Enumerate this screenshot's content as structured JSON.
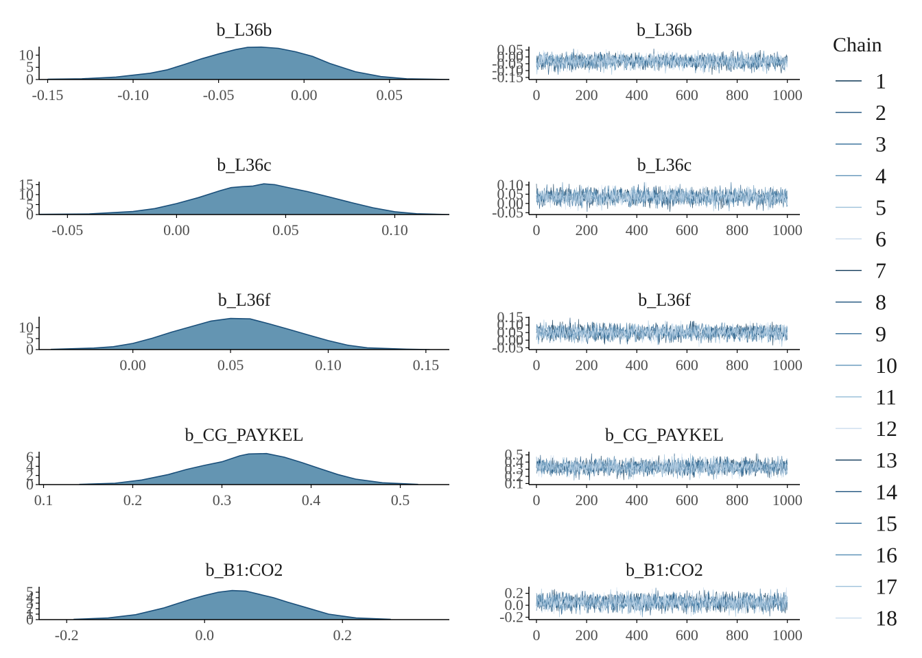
{
  "colors": {
    "density_fill": "#6495b2",
    "density_line": "#1a4f7a",
    "axis": "#000000",
    "tick_text": "#4d4d4d",
    "title_text": "#1a1a1a",
    "chain_palette": [
      "#0b3554",
      "#1a4f7a",
      "#2e6a96",
      "#5f93b8",
      "#9cc0d9",
      "#c9dced"
    ]
  },
  "legend": {
    "title": "Chain",
    "items": [
      "1",
      "2",
      "3",
      "4",
      "5",
      "6",
      "7",
      "8",
      "9",
      "10",
      "11",
      "12",
      "13",
      "14",
      "15",
      "16",
      "17",
      "18"
    ]
  },
  "chart_data": [
    {
      "type": "area",
      "title": "b_L36b",
      "xlabel": "",
      "ylabel": "",
      "xlim": [
        -0.155,
        0.085
      ],
      "ylim": [
        0,
        13.5
      ],
      "x_ticks": [
        -0.15,
        -0.1,
        -0.05,
        0.0,
        0.05
      ],
      "x_tick_labels": [
        "-0.15",
        "-0.10",
        "-0.05",
        "0.00",
        "0.05"
      ],
      "y_ticks": [
        0,
        5,
        10
      ],
      "y_tick_labels": [
        "0",
        "5",
        "10"
      ],
      "x": [
        -0.15,
        -0.13,
        -0.11,
        -0.09,
        -0.08,
        -0.07,
        -0.06,
        -0.05,
        -0.04,
        -0.033,
        -0.025,
        -0.015,
        -0.005,
        0.005,
        0.015,
        0.03,
        0.045,
        0.06,
        0.075,
        0.085
      ],
      "y": [
        0.1,
        0.3,
        1.0,
        2.6,
        4.0,
        6.2,
        8.5,
        10.5,
        12.3,
        13.2,
        13.3,
        12.8,
        11.4,
        9.5,
        6.6,
        3.2,
        1.2,
        0.3,
        0.1,
        0.0
      ]
    },
    {
      "type": "line",
      "title": "b_L36b",
      "xlabel": "",
      "ylabel": "",
      "xlim": [
        -30,
        1050
      ],
      "ylim": [
        -0.165,
        0.075
      ],
      "x_ticks": [
        0,
        200,
        400,
        600,
        800,
        1000
      ],
      "x_tick_labels": [
        "0",
        "200",
        "400",
        "600",
        "800",
        "1000"
      ],
      "y_ticks": [
        0.05,
        0.0,
        -0.05,
        -0.1,
        -0.15
      ],
      "y_tick_labels": [
        "0.05",
        "0.00",
        "-0.05",
        "-0.10",
        "-0.15"
      ],
      "n_iter": 1000,
      "center": -0.033,
      "spread": 0.03,
      "range": [
        -0.13,
        0.06
      ]
    },
    {
      "type": "area",
      "title": "b_L36c",
      "xlabel": "",
      "ylabel": "",
      "xlim": [
        -0.063,
        0.125
      ],
      "ylim": [
        0,
        16.5
      ],
      "x_ticks": [
        -0.05,
        0.0,
        0.05,
        0.1
      ],
      "x_tick_labels": [
        "-0.05",
        "0.00",
        "0.05",
        "0.10"
      ],
      "y_ticks": [
        0,
        5,
        10,
        15
      ],
      "y_tick_labels": [
        "0",
        "5",
        "10",
        "15"
      ],
      "x": [
        -0.063,
        -0.04,
        -0.02,
        -0.01,
        0.0,
        0.01,
        0.02,
        0.025,
        0.03,
        0.035,
        0.04,
        0.045,
        0.05,
        0.06,
        0.07,
        0.08,
        0.09,
        0.1,
        0.11,
        0.125
      ],
      "y": [
        0.1,
        0.3,
        1.5,
        3.0,
        5.5,
        8.5,
        12.0,
        13.5,
        14.0,
        14.3,
        15.4,
        15.0,
        13.8,
        11.5,
        8.8,
        6.0,
        3.4,
        1.4,
        0.4,
        0.0
      ]
    },
    {
      "type": "line",
      "title": "b_L36c",
      "xlabel": "",
      "ylabel": "",
      "xlim": [
        -30,
        1050
      ],
      "ylim": [
        -0.06,
        0.118
      ],
      "x_ticks": [
        0,
        200,
        400,
        600,
        800,
        1000
      ],
      "x_tick_labels": [
        "0",
        "200",
        "400",
        "600",
        "800",
        "1000"
      ],
      "y_ticks": [
        0.1,
        0.05,
        0.0,
        -0.05
      ],
      "y_tick_labels": [
        "0.10",
        "0.05",
        "0.00",
        "-0.05"
      ],
      "n_iter": 1000,
      "center": 0.035,
      "spread": 0.025,
      "range": [
        -0.045,
        0.115
      ]
    },
    {
      "type": "area",
      "title": "b_L36f",
      "xlabel": "",
      "ylabel": "",
      "xlim": [
        -0.048,
        0.162
      ],
      "ylim": [
        0,
        15
      ],
      "x_ticks": [
        0.0,
        0.05,
        0.1,
        0.15
      ],
      "x_tick_labels": [
        "0.00",
        "0.05",
        "0.10",
        "0.15"
      ],
      "y_ticks": [
        0,
        5,
        10
      ],
      "y_tick_labels": [
        "0",
        "5",
        "10"
      ],
      "x": [
        -0.042,
        -0.02,
        -0.01,
        0.0,
        0.01,
        0.02,
        0.03,
        0.04,
        0.05,
        0.06,
        0.07,
        0.08,
        0.09,
        0.1,
        0.11,
        0.12,
        0.14,
        0.152
      ],
      "y": [
        0.1,
        0.7,
        1.3,
        2.8,
        5.2,
        8.0,
        10.5,
        13.0,
        14.2,
        14.0,
        11.7,
        9.2,
        6.6,
        4.1,
        2.0,
        0.8,
        0.2,
        0.0
      ]
    },
    {
      "type": "line",
      "title": "b_L36f",
      "xlabel": "",
      "ylabel": "",
      "xlim": [
        -30,
        1050
      ],
      "ylim": [
        -0.062,
        0.155
      ],
      "x_ticks": [
        0,
        200,
        400,
        600,
        800,
        1000
      ],
      "x_tick_labels": [
        "0",
        "200",
        "400",
        "600",
        "800",
        "1000"
      ],
      "y_ticks": [
        0.15,
        0.1,
        0.05,
        0.0,
        -0.05
      ],
      "y_tick_labels": [
        "0.15",
        "0.10",
        "0.05",
        "0.00",
        "-0.05"
      ],
      "n_iter": 1000,
      "center": 0.05,
      "spread": 0.028,
      "range": [
        -0.045,
        0.148
      ]
    },
    {
      "type": "area",
      "title": "b_CG_PAYKEL",
      "xlabel": "",
      "ylabel": "",
      "xlim": [
        0.095,
        0.555
      ],
      "ylim": [
        0,
        7.2
      ],
      "x_ticks": [
        0.1,
        0.2,
        0.3,
        0.4,
        0.5
      ],
      "x_tick_labels": [
        "0.1",
        "0.2",
        "0.3",
        "0.4",
        "0.5"
      ],
      "y_ticks": [
        0,
        2,
        4,
        6
      ],
      "y_tick_labels": [
        "0",
        "2",
        "4",
        "6"
      ],
      "x": [
        0.14,
        0.18,
        0.21,
        0.24,
        0.26,
        0.28,
        0.3,
        0.32,
        0.33,
        0.35,
        0.37,
        0.39,
        0.41,
        0.43,
        0.45,
        0.48,
        0.52
      ],
      "y": [
        0.05,
        0.3,
        1.0,
        2.2,
        3.3,
        4.2,
        5.0,
        6.3,
        6.7,
        6.8,
        6.0,
        4.8,
        3.5,
        2.2,
        1.2,
        0.4,
        0.05
      ]
    },
    {
      "type": "line",
      "title": "b_CG_PAYKEL",
      "xlabel": "",
      "ylabel": "",
      "xlim": [
        -30,
        1050
      ],
      "ylim": [
        0.085,
        0.545
      ],
      "x_ticks": [
        0,
        200,
        400,
        600,
        800,
        1000
      ],
      "x_tick_labels": [
        "0",
        "200",
        "400",
        "600",
        "800",
        "1000"
      ],
      "y_ticks": [
        0.5,
        0.4,
        0.3,
        0.2,
        0.1
      ],
      "y_tick_labels": [
        "0.5",
        "0.4",
        "0.3",
        "0.2",
        "0.1"
      ],
      "n_iter": 1000,
      "center": 0.33,
      "spread": 0.06,
      "range": [
        0.13,
        0.52
      ]
    },
    {
      "type": "area",
      "title": "b_B1:CO2",
      "xlabel": "",
      "ylabel": "",
      "xlim": [
        -0.24,
        0.355
      ],
      "ylim": [
        0,
        6
      ],
      "x_ticks": [
        -0.2,
        0.0,
        0.2
      ],
      "x_tick_labels": [
        "-0.2",
        "0.0",
        "0.2"
      ],
      "y_ticks": [
        0,
        1,
        2,
        3,
        4,
        5
      ],
      "y_tick_labels": [
        "0",
        "1",
        "2",
        "3",
        "4",
        "5"
      ],
      "x": [
        -0.19,
        -0.14,
        -0.1,
        -0.06,
        -0.04,
        -0.02,
        0.0,
        0.02,
        0.04,
        0.06,
        0.08,
        0.1,
        0.12,
        0.15,
        0.18,
        0.22,
        0.27
      ],
      "y": [
        0.05,
        0.3,
        0.9,
        2.1,
        2.9,
        3.7,
        4.4,
        5.0,
        5.3,
        5.2,
        4.6,
        4.0,
        3.2,
        2.1,
        1.0,
        0.3,
        0.05
      ]
    },
    {
      "type": "line",
      "title": "b_B1:CO2",
      "xlabel": "",
      "ylabel": "",
      "xlim": [
        -30,
        1050
      ],
      "ylim": [
        -0.24,
        0.31
      ],
      "x_ticks": [
        0,
        200,
        400,
        600,
        800,
        1000
      ],
      "x_tick_labels": [
        "0",
        "200",
        "400",
        "600",
        "800",
        "1000"
      ],
      "y_ticks": [
        0.2,
        0.0,
        -0.2
      ],
      "y_tick_labels": [
        "0.2",
        "0.0",
        "-0.2"
      ],
      "n_iter": 1000,
      "center": 0.05,
      "spread": 0.08,
      "range": [
        -0.2,
        0.3
      ]
    }
  ]
}
